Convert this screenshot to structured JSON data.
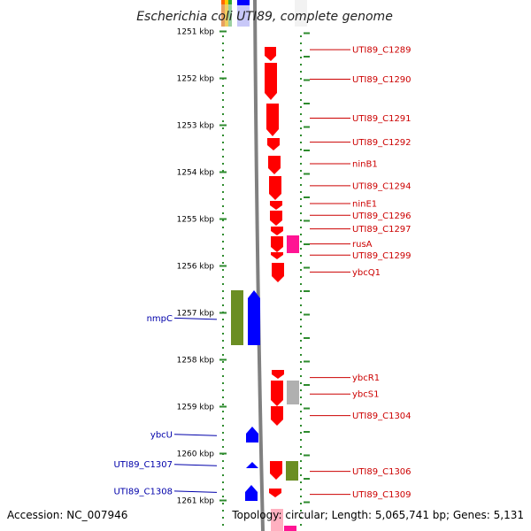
{
  "title": "Escherichia coli UTI89, complete genome",
  "footer": {
    "accession": "Accession: NC_007946",
    "topology": "Topology: circular; Length: 5,065,741 bp; Genes: 5,131"
  },
  "colors": {
    "red_gene": "#ff0000",
    "blue_gene": "#0000ff",
    "green_gene": "#6b8e23",
    "pink_gene": "#ff1493",
    "gray_gene": "#b0b0b0",
    "tick_green": "#2e8b2e",
    "right_label": "#cc0000",
    "left_label": "#0000aa",
    "backbone": "#808080"
  },
  "ruler": [
    {
      "label": "1251 kbp",
      "kbp": 1251
    },
    {
      "label": "1252 kbp",
      "kbp": 1252
    },
    {
      "label": "1253 kbp",
      "kbp": 1253
    },
    {
      "label": "1254 kbp",
      "kbp": 1254
    },
    {
      "label": "1255 kbp",
      "kbp": 1255
    },
    {
      "label": "1256 kbp",
      "kbp": 1256
    },
    {
      "label": "1257 kbp",
      "kbp": 1257
    },
    {
      "label": "1258 kbp",
      "kbp": 1258
    },
    {
      "label": "1259 kbp",
      "kbp": 1259
    },
    {
      "label": "1260 kbp",
      "kbp": 1260
    },
    {
      "label": "1261 kbp",
      "kbp": 1261
    }
  ],
  "right_labels": [
    {
      "text": "UTI89_C1289",
      "kbp": 1251.39
    },
    {
      "text": "UTI89_C1290",
      "kbp": 1252.02
    },
    {
      "text": "UTI89_C1291",
      "kbp": 1252.85
    },
    {
      "text": "UTI89_C1292",
      "kbp": 1253.36
    },
    {
      "text": "ninB1",
      "kbp": 1253.82
    },
    {
      "text": "UTI89_C1294",
      "kbp": 1254.29
    },
    {
      "text": "ninE1",
      "kbp": 1254.67
    },
    {
      "text": "UTI89_C1296",
      "kbp": 1254.92
    },
    {
      "text": "UTI89_C1297",
      "kbp": 1255.21
    },
    {
      "text": "rusA",
      "kbp": 1255.53
    },
    {
      "text": "UTI89_C1299",
      "kbp": 1255.77
    },
    {
      "text": "ybcQ1",
      "kbp": 1256.13
    },
    {
      "text": "ybcR1",
      "kbp": 1258.38
    },
    {
      "text": "ybcS1",
      "kbp": 1258.73
    },
    {
      "text": "UTI89_C1304",
      "kbp": 1259.19
    },
    {
      "text": "UTI89_C1306",
      "kbp": 1260.38
    },
    {
      "text": "UTI89_C1309",
      "kbp": 1260.87
    }
  ],
  "left_labels": [
    {
      "text": "nmpC",
      "kbp": 1257.11
    },
    {
      "text": "ybcU",
      "kbp": 1259.59
    },
    {
      "text": "UTI89_C1307",
      "kbp": 1260.23
    },
    {
      "text": "UTI89_C1308",
      "kbp": 1260.8
    }
  ]
}
